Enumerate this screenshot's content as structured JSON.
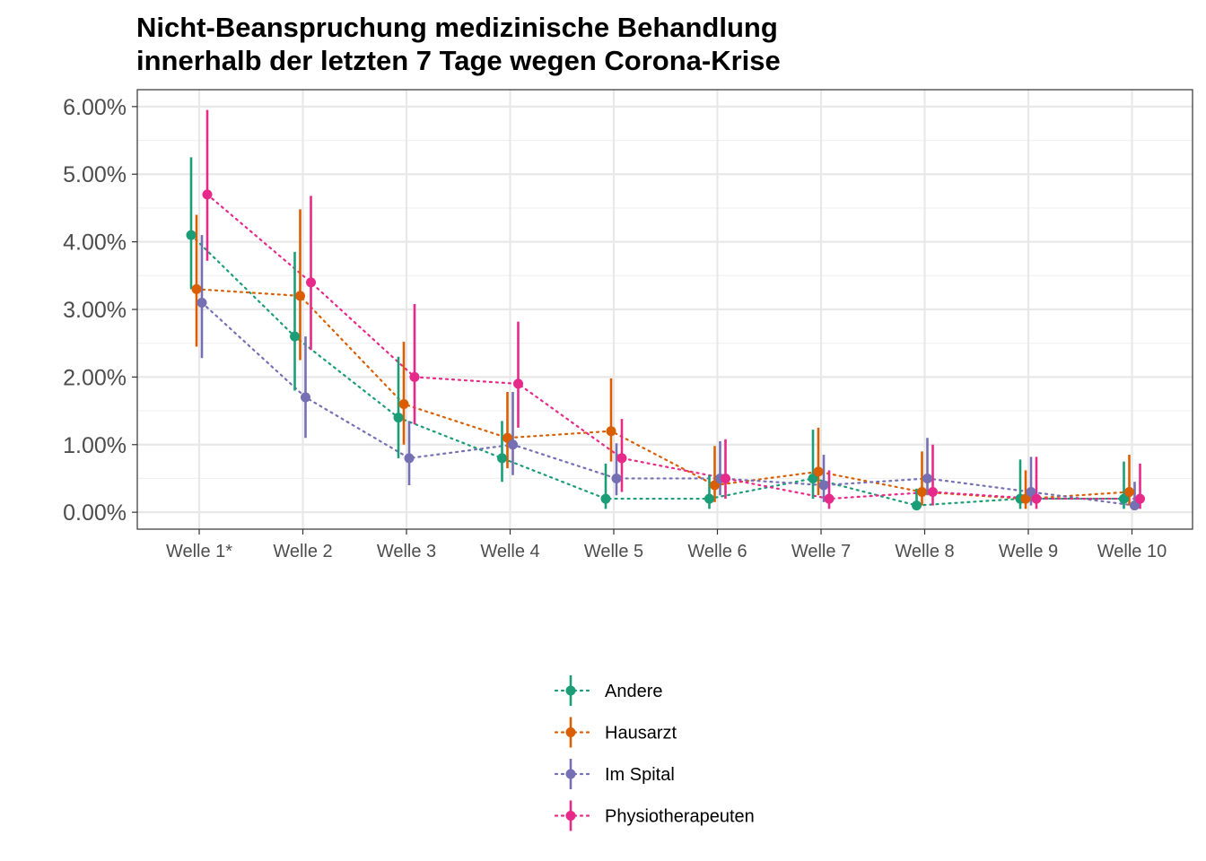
{
  "chart_data": {
    "type": "line",
    "title": [
      "Nicht-Beanspruchung medizinische Behandlung",
      "innerhalb der letzten 7 Tage wegen Corona-Krise"
    ],
    "categories": [
      "Welle 1*",
      "Welle 2",
      "Welle 3",
      "Welle 4",
      "Welle 5",
      "Welle 6",
      "Welle 7",
      "Welle 8",
      "Welle 9",
      "Welle 10"
    ],
    "ylim": [
      -0.25,
      6.25
    ],
    "yticks": [
      0,
      1,
      2,
      3,
      4,
      5,
      6
    ],
    "ytick_labels": [
      "0.00%",
      "1.00%",
      "2.00%",
      "3.00%",
      "4.00%",
      "5.00%",
      "6.00%"
    ],
    "grid": true,
    "legend_position": "bottom",
    "series": [
      {
        "name": "Andere",
        "color": "#1B9E77",
        "values": [
          4.1,
          2.6,
          1.4,
          0.8,
          0.2,
          0.2,
          0.5,
          0.1,
          0.2,
          0.2
        ],
        "lower": [
          3.3,
          1.8,
          0.8,
          0.45,
          0.05,
          0.05,
          0.2,
          0.05,
          0.05,
          0.05
        ],
        "upper": [
          5.25,
          3.85,
          2.3,
          1.35,
          0.72,
          0.55,
          1.22,
          0.35,
          0.78,
          0.75
        ]
      },
      {
        "name": "Hausarzt",
        "color": "#D95F02",
        "values": [
          3.3,
          3.2,
          1.6,
          1.1,
          1.2,
          0.4,
          0.6,
          0.3,
          0.2,
          0.3
        ],
        "lower": [
          2.45,
          2.25,
          1.0,
          0.65,
          0.75,
          0.15,
          0.25,
          0.1,
          0.05,
          0.1
        ],
        "upper": [
          4.4,
          4.48,
          2.52,
          1.78,
          1.98,
          0.98,
          1.25,
          0.9,
          0.62,
          0.85
        ]
      },
      {
        "name": "Im Spital",
        "color": "#7570B3",
        "values": [
          3.1,
          1.7,
          0.8,
          1.0,
          0.5,
          0.5,
          0.4,
          0.5,
          0.3,
          0.1
        ],
        "lower": [
          2.28,
          1.1,
          0.4,
          0.55,
          0.25,
          0.25,
          0.15,
          0.25,
          0.1,
          0.03
        ],
        "upper": [
          4.1,
          2.6,
          1.35,
          1.78,
          1.02,
          1.05,
          0.85,
          1.1,
          0.82,
          0.45
        ]
      },
      {
        "name": "Physiotherapeuten",
        "color": "#E7298A",
        "values": [
          4.7,
          3.4,
          2.0,
          1.9,
          0.8,
          0.5,
          0.2,
          0.3,
          0.2,
          0.2
        ],
        "lower": [
          3.72,
          2.4,
          1.3,
          1.25,
          0.3,
          0.2,
          0.05,
          0.1,
          0.05,
          0.05
        ],
        "upper": [
          5.95,
          4.68,
          3.08,
          2.82,
          1.38,
          1.08,
          0.62,
          1.0,
          0.82,
          0.72
        ]
      }
    ]
  }
}
